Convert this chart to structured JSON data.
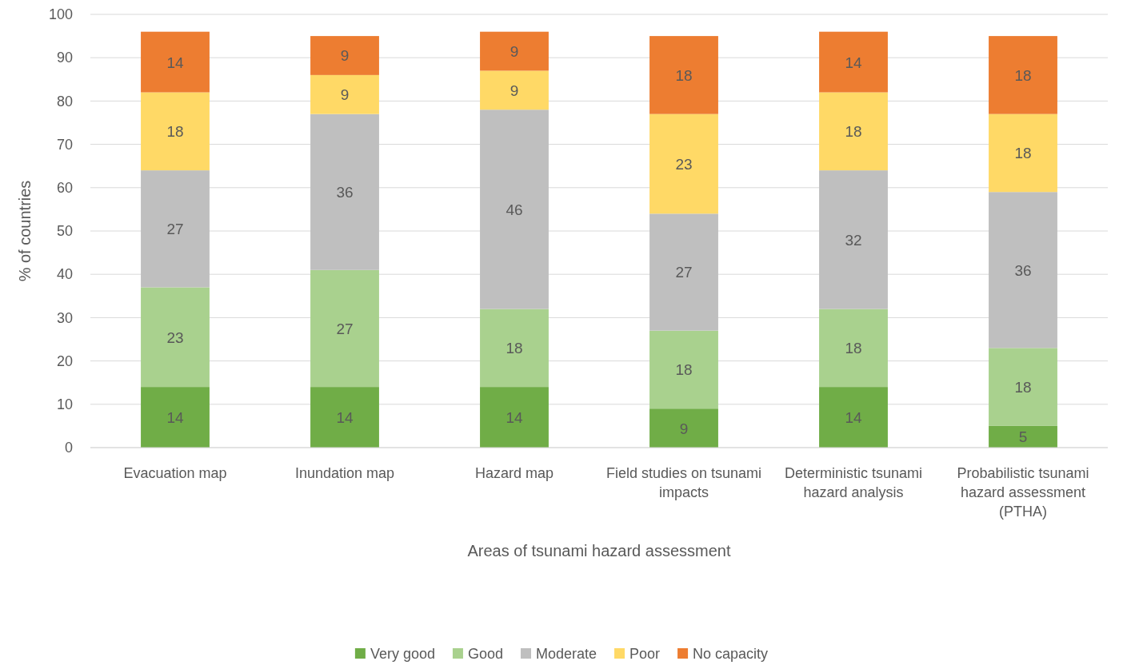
{
  "chart_data": {
    "type": "bar",
    "stacked": true,
    "xlabel": "Areas of tsunami hazard assessment",
    "ylabel": "% of countries",
    "categories": [
      "Evacuation map",
      "Inundation map",
      "Hazard map",
      "Field studies on tsunami impacts",
      "Deterministic tsunami hazard analysis",
      "Probabilistic tsunami hazard assessment (PTHA)"
    ],
    "series": [
      {
        "name": "Very good",
        "color": "#70ad47",
        "values": [
          14,
          14,
          14,
          9,
          14,
          5
        ]
      },
      {
        "name": "Good",
        "color": "#a9d18e",
        "values": [
          23,
          27,
          18,
          18,
          18,
          18
        ]
      },
      {
        "name": "Moderate",
        "color": "#bfbfbf",
        "values": [
          27,
          36,
          46,
          27,
          32,
          36
        ]
      },
      {
        "name": "Poor",
        "color": "#ffd966",
        "values": [
          18,
          9,
          9,
          23,
          18,
          18
        ]
      },
      {
        "name": "No capacity",
        "color": "#ed7d31",
        "values": [
          14,
          9,
          9,
          18,
          14,
          18
        ]
      }
    ],
    "ylim": [
      0,
      100
    ],
    "yticks": [
      0,
      10,
      20,
      30,
      40,
      50,
      60,
      70,
      80,
      90,
      100
    ],
    "grid": "y",
    "legend": "bottom",
    "data_labels": true
  }
}
